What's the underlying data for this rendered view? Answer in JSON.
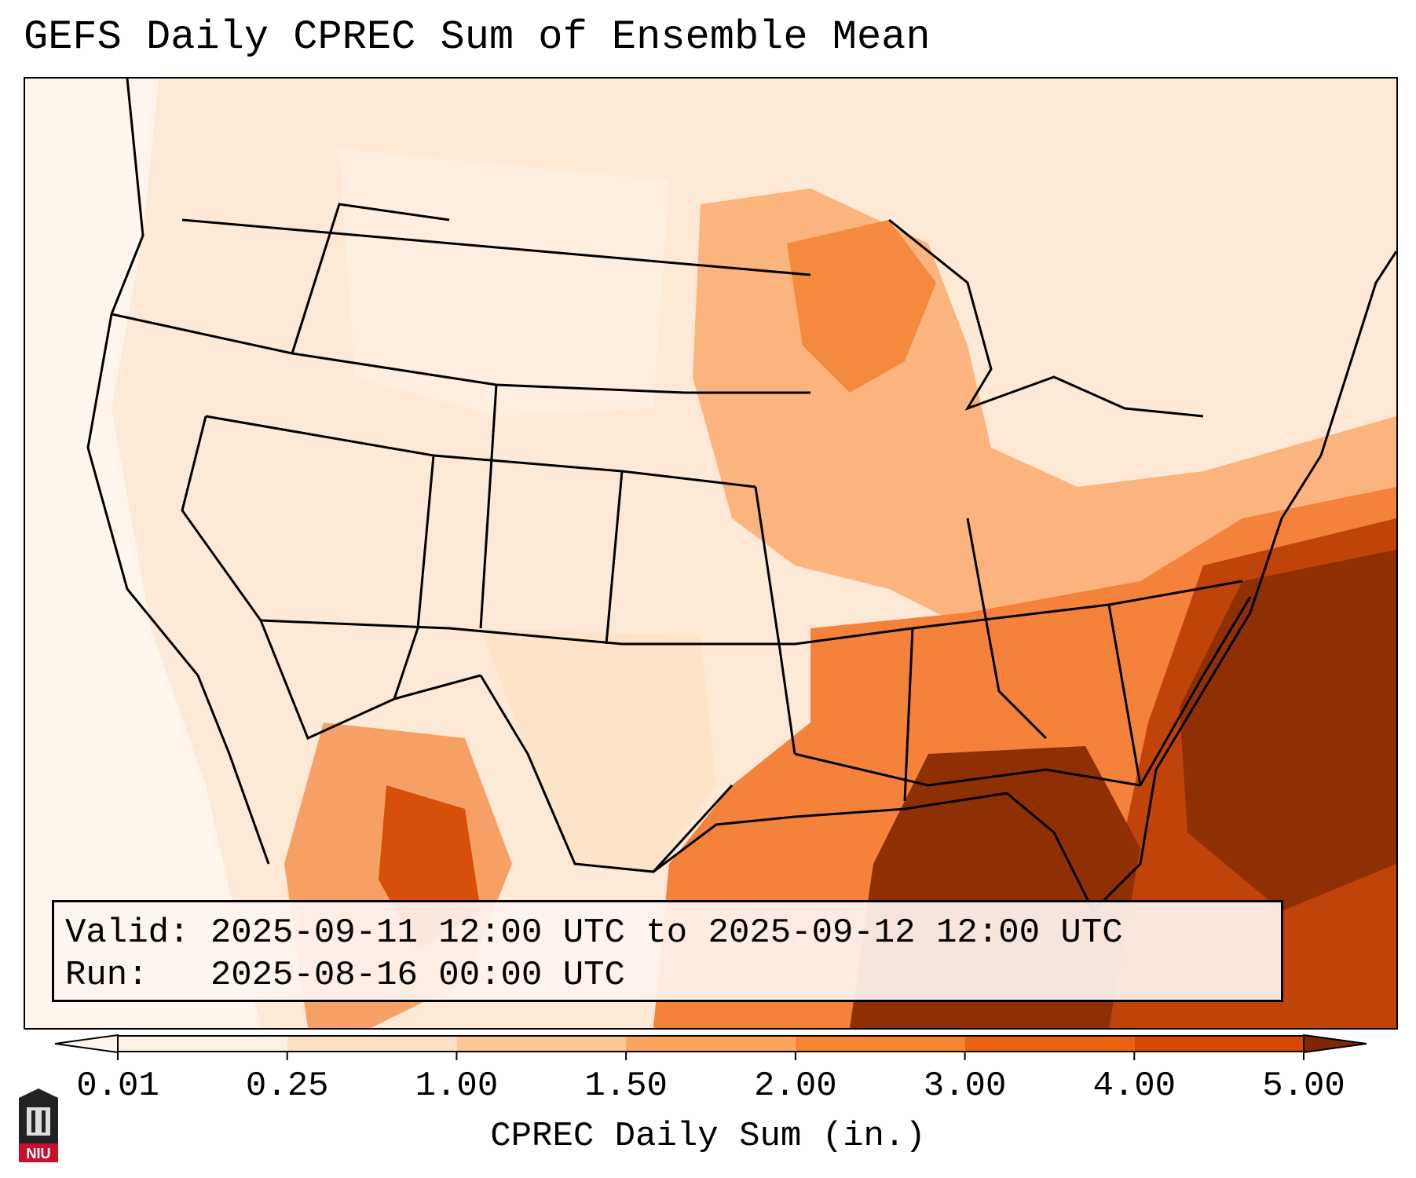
{
  "title": "GEFS Daily CPREC Sum of Ensemble Mean",
  "info": {
    "valid_label": "Valid:",
    "valid_value": "2025-09-11 12:00 UTC to 2025-09-12 12:00 UTC",
    "run_label": "Run:",
    "run_value": "2025-08-16 00:00 UTC"
  },
  "colorbar": {
    "label": "CPREC Daily Sum (in.)",
    "ticks": [
      "0.01",
      "0.25",
      "1.00",
      "1.50",
      "2.00",
      "3.00",
      "4.00",
      "5.00"
    ],
    "colors": [
      "#fdf0e4",
      "#fde0c4",
      "#fdc896",
      "#fca35c",
      "#f98534",
      "#ec6212",
      "#d84802",
      "#8f2f04"
    ],
    "under_color": "#fff7ef",
    "over_color": "#7f2704"
  },
  "logo": {
    "text": "NIU"
  }
}
